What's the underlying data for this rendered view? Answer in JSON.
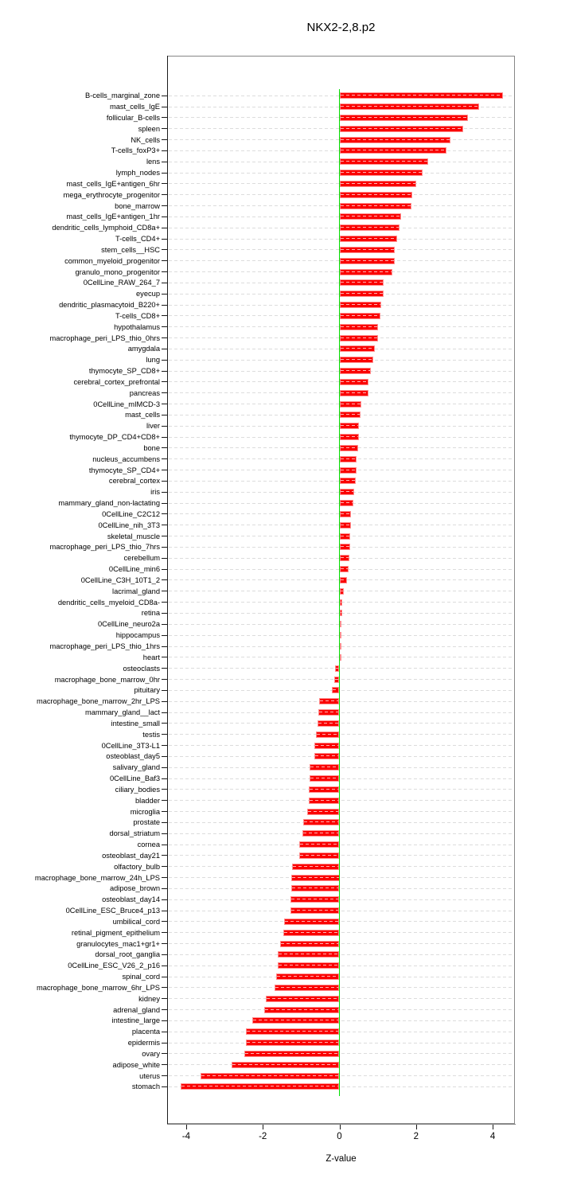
{
  "title": "NKX2-2,8.p2",
  "chart_data": {
    "type": "bar",
    "orientation": "horizontal",
    "title": "NKX2-2,8.p2",
    "xlabel": "Z-value",
    "ylabel": "",
    "x_ticks": [
      -4,
      -2,
      0,
      2,
      4
    ],
    "xlim": [
      -4.5,
      4.58
    ],
    "grid": "dashed-horizontal",
    "legend": "none",
    "bar_color": "#fa0000",
    "zero_line_color": "#00e000",
    "gridline_color": "#dcdcdc",
    "categories": [
      "B-cells_marginal_zone",
      "mast_cells_IgE",
      "follicular_B-cells",
      "spleen",
      "NK_cells",
      "T-cells_foxP3+",
      "lens",
      "lymph_nodes",
      "mast_cells_IgE+antigen_6hr",
      "mega_erythrocyte_progenitor",
      "bone_marrow",
      "mast_cells_IgE+antigen_1hr",
      "dendritic_cells_lymphoid_CD8a+",
      "T-cells_CD4+",
      "stem_cells__HSC",
      "common_myeloid_progenitor",
      "granulo_mono_progenitor",
      "0CellLine_RAW_264_7",
      "eyecup",
      "dendritic_plasmacytoid_B220+",
      "T-cells_CD8+",
      "hypothalamus",
      "macrophage_peri_LPS_thio_0hrs",
      "amygdala",
      "lung",
      "thymocyte_SP_CD8+",
      "cerebral_cortex_prefrontal",
      "pancreas",
      "0CellLine_mIMCD-3",
      "mast_cells",
      "liver",
      "thymocyte_DP_CD4+CD8+",
      "bone",
      "nucleus_accumbens",
      "thymocyte_SP_CD4+",
      "cerebral_cortex",
      "iris",
      "mammary_gland_non-lactating",
      "0CellLine_C2C12",
      "0CellLine_nih_3T3",
      "skeletal_muscle",
      "macrophage_peri_LPS_thio_7hrs",
      "cerebellum",
      "0CellLine_min6",
      "0CellLine_C3H_10T1_2",
      "lacrimal_gland",
      "dendritic_cells_myeloid_CD8a-",
      "retina",
      "0CellLine_neuro2a",
      "hippocampus",
      "macrophage_peri_LPS_thio_1hrs",
      "heart",
      "osteoclasts",
      "macrophage_bone_marrow_0hr",
      "pituitary",
      "macrophage_bone_marrow_2hr_LPS",
      "mammary_gland__lact",
      "intestine_small",
      "testis",
      "0CellLine_3T3-L1",
      "osteoblast_day5",
      "salivary_gland",
      "0CellLine_Baf3",
      "ciliary_bodies",
      "bladder",
      "microglia",
      "prostate",
      "dorsal_striatum",
      "cornea",
      "osteoblast_day21",
      "olfactory_bulb",
      "macrophage_bone_marrow_24h_LPS",
      "adipose_brown",
      "osteoblast_day14",
      "0CellLine_ESC_Bruce4_p13",
      "umbilical_cord",
      "retinal_pigment_epithelium",
      "granulocytes_mac1+gr1+",
      "dorsal_root_ganglia",
      "0CellLine_ESC_V26_2_p16",
      "spinal_cord",
      "macrophage_bone_marrow_6hr_LPS",
      "kidney",
      "adrenal_gland",
      "intestine_large",
      "placenta",
      "epidermis",
      "ovary",
      "adipose_white",
      "uterus",
      "stomach"
    ],
    "values": [
      4.26,
      3.64,
      3.35,
      3.23,
      2.9,
      2.79,
      2.32,
      2.17,
      2.01,
      1.89,
      1.88,
      1.61,
      1.56,
      1.5,
      1.45,
      1.44,
      1.38,
      1.16,
      1.15,
      1.09,
      1.07,
      1.01,
      1.0,
      0.93,
      0.89,
      0.81,
      0.76,
      0.75,
      0.58,
      0.54,
      0.5,
      0.5,
      0.48,
      0.45,
      0.44,
      0.42,
      0.38,
      0.36,
      0.3,
      0.3,
      0.28,
      0.28,
      0.26,
      0.23,
      0.19,
      0.12,
      0.08,
      0.07,
      0.06,
      0.03,
      0.02,
      0.01,
      -0.11,
      -0.14,
      -0.19,
      -0.52,
      -0.55,
      -0.57,
      -0.62,
      -0.65,
      -0.66,
      -0.78,
      -0.78,
      -0.79,
      -0.8,
      -0.84,
      -0.95,
      -0.96,
      -1.04,
      -1.05,
      -1.24,
      -1.25,
      -1.26,
      -1.28,
      -1.28,
      -1.45,
      -1.47,
      -1.54,
      -1.61,
      -1.61,
      -1.65,
      -1.69,
      -1.93,
      -1.96,
      -2.28,
      -2.43,
      -2.44,
      -2.48,
      -2.82,
      -3.63,
      -4.15
    ]
  }
}
